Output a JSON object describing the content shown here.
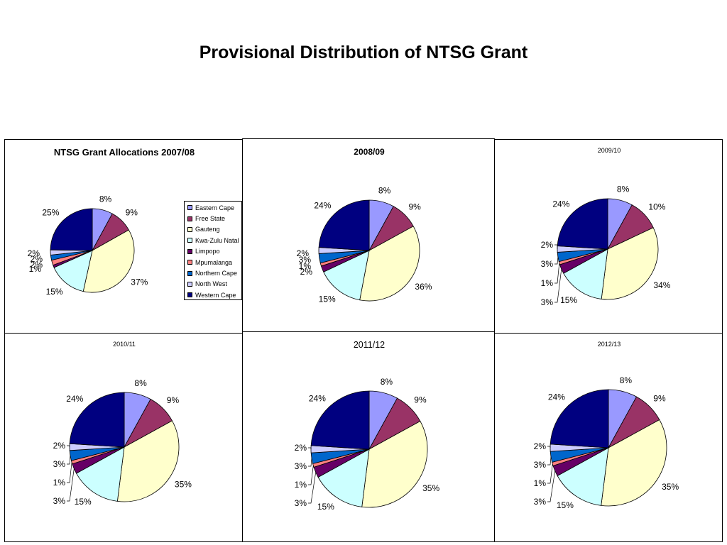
{
  "page": {
    "title": "Provisional Distribution of NTSG Grant"
  },
  "colors": [
    "#9999ff",
    "#993366",
    "#ffffcc",
    "#ccffff",
    "#660066",
    "#ff8080",
    "#0066cc",
    "#ccccff",
    "#000080"
  ],
  "legend": {
    "items": [
      "Eastern Cape",
      "Free State",
      "Gauteng",
      "Kwa-Zulu Natal",
      "Limpopo",
      "Mpumalanga",
      "Northern Cape",
      "North West",
      "Western Cape"
    ]
  },
  "chart_data": [
    {
      "type": "pie",
      "title": "NTSG Grant Allocations 2007/08",
      "categories": [
        "Eastern Cape",
        "Free State",
        "Gauteng",
        "Kwa-Zulu Natal",
        "Limpopo",
        "Mpumalanga",
        "Northern Cape",
        "North West",
        "Western Cape"
      ],
      "values": [
        8,
        9,
        37,
        15,
        1,
        2,
        2,
        2,
        25
      ],
      "data_labels": [
        "8%",
        "9%",
        "37%",
        "15%",
        "1%",
        "2%",
        "2%",
        "2%",
        "25%"
      ],
      "legend": "right"
    },
    {
      "type": "pie",
      "title": "2008/09",
      "categories": [
        "Eastern Cape",
        "Free State",
        "Gauteng",
        "Kwa-Zulu Natal",
        "Limpopo",
        "Mpumalanga",
        "Northern Cape",
        "North West",
        "Western Cape"
      ],
      "values": [
        8,
        9,
        36,
        15,
        2,
        1,
        3,
        2,
        24
      ],
      "data_labels": [
        "8%",
        "9%",
        "36%",
        "15%",
        "2%",
        "1%",
        "3%",
        "2%",
        "24%"
      ]
    },
    {
      "type": "pie",
      "title": "2009/10",
      "categories": [
        "Eastern Cape",
        "Free State",
        "Gauteng",
        "Kwa-Zulu Natal",
        "Limpopo",
        "Mpumalanga",
        "Northern Cape",
        "North West",
        "Western Cape"
      ],
      "values": [
        8,
        10,
        34,
        15,
        3,
        1,
        3,
        2,
        24
      ],
      "data_labels": [
        "8%",
        "10%",
        "34%",
        "15%",
        "3%",
        "1%",
        "3%",
        "2%",
        "24%"
      ]
    },
    {
      "type": "pie",
      "title": "2010/11",
      "categories": [
        "Eastern Cape",
        "Free State",
        "Gauteng",
        "Kwa-Zulu Natal",
        "Limpopo",
        "Mpumalanga",
        "Northern Cape",
        "North West",
        "Western Cape"
      ],
      "values": [
        8,
        9,
        35,
        15,
        3,
        1,
        3,
        2,
        24
      ],
      "data_labels": [
        "8%",
        "9%",
        "35%",
        "15%",
        "3%",
        "1%",
        "3%",
        "2%",
        "24%"
      ]
    },
    {
      "type": "pie",
      "title": "2011/12",
      "categories": [
        "Eastern Cape",
        "Free State",
        "Gauteng",
        "Kwa-Zulu Natal",
        "Limpopo",
        "Mpumalanga",
        "Northern Cape",
        "North West",
        "Western Cape"
      ],
      "values": [
        8,
        9,
        35,
        15,
        3,
        1,
        3,
        2,
        24
      ],
      "data_labels": [
        "8%",
        "9%",
        "35%",
        "15%",
        "3%",
        "1%",
        "3%",
        "2%",
        "24%"
      ]
    },
    {
      "type": "pie",
      "title": "2012/13",
      "categories": [
        "Eastern Cape",
        "Free State",
        "Gauteng",
        "Kwa-Zulu Natal",
        "Limpopo",
        "Mpumalanga",
        "Northern Cape",
        "North West",
        "Western Cape"
      ],
      "values": [
        8,
        9,
        35,
        15,
        3,
        1,
        3,
        2,
        24
      ],
      "data_labels": [
        "8%",
        "9%",
        "35%",
        "15%",
        "3%",
        "1%",
        "3%",
        "2%",
        "24%"
      ]
    }
  ]
}
